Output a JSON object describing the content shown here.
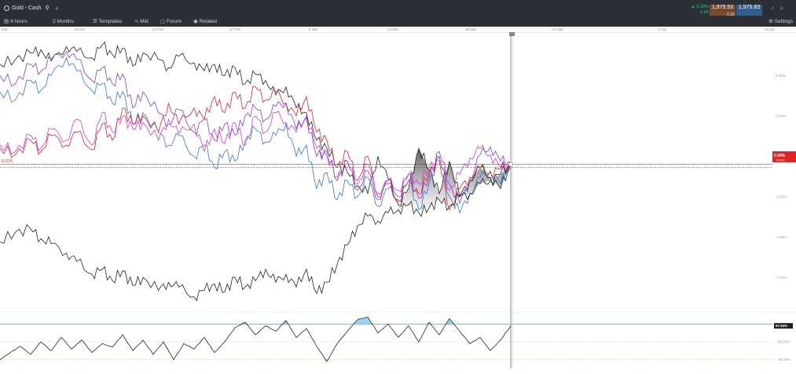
{
  "header": {
    "symbol": "Gold - Cash",
    "plus": "+",
    "change_pct": "▲ 0.28%",
    "change_abs": "5.83",
    "bid": "1,975.53",
    "ask": "1,975.83",
    "spread": "0.30",
    "window_controls": "↗ ✕"
  },
  "toolbar": {
    "interval": "4 hours",
    "range": "2 Months",
    "templates": "Templates",
    "mid": "Mid",
    "forum": "Forum",
    "related": "Related",
    "settings": "Settings"
  },
  "dates": [
    "Feb",
    "13 Feb",
    "20 Feb",
    "27 Feb",
    "6 Mar",
    "13 Mar",
    "20 Mar",
    "27 Mar",
    "3 Apr",
    "10 Apr"
  ],
  "colors": {
    "black": "#222222",
    "blue": "#3a73d4",
    "red": "#e02424",
    "magenta": "#d63bd3",
    "purple": "#7b3fd9",
    "rsi_band": "#3fb8d8",
    "rsi_low": "#f0a14a"
  },
  "chart_data": {
    "type": "line",
    "x_range": [
      0,
      100
    ],
    "main": {
      "y_ticks": [
        "5.50%",
        "3.00%",
        "0.50%",
        "-2.00%",
        "-4.50%",
        "-7.00%"
      ],
      "current_label": "0.00%",
      "current_sub_label": "-0.40%",
      "left_label": "0.22%",
      "ylim": [
        -9.0,
        8.0
      ],
      "series": [
        {
          "color": "#222222",
          "x": [
            0,
            3,
            6,
            8,
            10,
            13,
            15,
            18,
            20,
            22,
            24,
            26,
            28,
            31,
            33,
            35,
            38,
            40,
            42,
            44,
            46,
            48,
            50,
            52,
            54,
            56,
            58,
            60,
            62,
            64,
            66,
            68,
            70,
            72,
            74,
            76,
            78,
            80,
            82,
            84,
            86,
            88,
            90,
            92,
            94,
            96,
            98,
            100
          ],
          "y": [
            6.2,
            6.5,
            6.9,
            7.1,
            6.4,
            7.3,
            7.0,
            6.6,
            7.4,
            6.8,
            7.2,
            6.1,
            6.9,
            6.5,
            6.0,
            6.7,
            6.3,
            5.8,
            6.2,
            5.5,
            6.0,
            5.0,
            5.6,
            5.2,
            4.3,
            4.8,
            3.5,
            3.2,
            1.5,
            1.0,
            0.0,
            -0.5,
            -1.3,
            -1.8,
            0.5,
            -0.9,
            -2.5,
            -1.5,
            1.0,
            -0.3,
            -1.8,
            0.2,
            -2.0,
            -1.0,
            -0.2,
            -0.8,
            -1.5,
            0.0
          ]
        },
        {
          "color": "#3a73d4",
          "x": [
            0,
            3,
            6,
            8,
            10,
            13,
            15,
            18,
            20,
            22,
            24,
            26,
            28,
            31,
            33,
            35,
            38,
            40,
            42,
            44,
            46,
            48,
            50,
            52,
            54,
            56,
            58,
            60,
            62,
            64,
            66,
            68,
            70,
            72,
            74,
            76,
            78,
            80,
            82,
            84,
            86,
            88,
            90,
            92,
            94,
            96,
            98,
            100
          ],
          "y": [
            4.5,
            4.0,
            5.2,
            4.6,
            5.5,
            6.6,
            5.8,
            4.6,
            5.0,
            3.8,
            4.5,
            2.5,
            3.2,
            2.0,
            1.2,
            1.8,
            0.5,
            1.2,
            -0.2,
            0.8,
            0.2,
            1.5,
            2.2,
            1.4,
            1.8,
            2.5,
            0.5,
            1.2,
            -1.5,
            -0.5,
            -2.2,
            -1.0,
            -2.0,
            -0.8,
            -2.6,
            -1.5,
            -2.2,
            -1.0,
            -2.8,
            -1.2,
            0.5,
            -2.0,
            -3.0,
            -1.8,
            -0.8,
            -0.4,
            -1.2,
            -0.2
          ]
        },
        {
          "color": "#e02424",
          "x": [
            0,
            3,
            6,
            8,
            10,
            13,
            15,
            18,
            20,
            22,
            24,
            26,
            28,
            31,
            33,
            35,
            38,
            40,
            42,
            44,
            46,
            48,
            50,
            52,
            54,
            56,
            58,
            60,
            62,
            64,
            66,
            68,
            70,
            72,
            74,
            76,
            78,
            80,
            82,
            84,
            86,
            88,
            90,
            92,
            94,
            96,
            98,
            100
          ],
          "y": [
            1.0,
            0.6,
            1.5,
            0.8,
            1.8,
            1.2,
            2.0,
            0.9,
            2.5,
            1.5,
            3.5,
            2.5,
            3.0,
            2.0,
            3.8,
            2.5,
            3.5,
            2.8,
            4.2,
            3.2,
            4.5,
            3.5,
            4.8,
            4.0,
            4.5,
            3.8,
            3.0,
            4.2,
            2.0,
            1.5,
            -0.2,
            0.8,
            -1.0,
            0.5,
            -2.0,
            -1.2,
            -2.3,
            -1.0,
            -1.8,
            -0.5,
            0.2,
            -2.8,
            -1.5,
            -0.8,
            -0.2,
            -0.5,
            -0.3,
            -0.1
          ]
        },
        {
          "color": "#d63bd3",
          "x": [
            0,
            3,
            6,
            8,
            10,
            13,
            15,
            18,
            20,
            22,
            24,
            26,
            28,
            31,
            33,
            35,
            38,
            40,
            42,
            44,
            46,
            48,
            50,
            52,
            54,
            56,
            58,
            60,
            62,
            64,
            66,
            68,
            70,
            72,
            74,
            76,
            78,
            80,
            82,
            84,
            86,
            88,
            90,
            92,
            94,
            96,
            98,
            100
          ],
          "y": [
            1.2,
            0.8,
            1.8,
            1.0,
            2.2,
            1.5,
            2.8,
            1.2,
            3.2,
            2.0,
            3.0,
            2.2,
            2.6,
            1.5,
            2.8,
            1.9,
            2.5,
            0.8,
            2.2,
            1.3,
            2.6,
            1.2,
            3.0,
            2.0,
            3.2,
            2.6,
            2.0,
            3.0,
            1.0,
            0.5,
            -0.8,
            0.2,
            -1.2,
            0.0,
            -1.8,
            -1.0,
            -1.6,
            -0.6,
            -1.2,
            -0.2,
            0.4,
            -1.6,
            -0.6,
            0.4,
            1.0,
            0.6,
            -0.2,
            0.0
          ]
        },
        {
          "color": "#7b3fd9",
          "x": [
            0,
            3,
            6,
            8,
            10,
            13,
            15,
            18,
            20,
            22,
            24,
            26,
            28,
            31,
            33,
            35,
            38,
            40,
            42,
            44,
            46,
            48,
            50,
            52,
            54,
            56,
            58,
            60,
            62,
            64,
            66,
            68,
            70,
            72,
            74,
            76,
            78,
            80,
            82,
            84,
            86,
            88,
            90,
            92,
            94,
            96,
            98,
            100
          ],
          "y": [
            5.5,
            5.0,
            6.2,
            5.8,
            6.5,
            7.0,
            6.5,
            5.2,
            6.0,
            5.0,
            5.6,
            3.5,
            4.5,
            3.2,
            2.5,
            3.4,
            2.0,
            2.8,
            1.5,
            2.5,
            1.8,
            3.0,
            3.5,
            2.8,
            3.6,
            3.8,
            2.2,
            2.9,
            0.5,
            0.8,
            -1.0,
            0.2,
            -1.6,
            -0.4,
            -2.2,
            -1.0,
            -2.0,
            -0.6,
            -2.1,
            -0.8,
            0.8,
            -1.2,
            -2.4,
            -1.0,
            0.6,
            1.1,
            0.2,
            0.1
          ]
        },
        {
          "color": "#222222",
          "x": [
            0,
            3,
            6,
            8,
            10,
            13,
            15,
            18,
            20,
            22,
            24,
            26,
            28,
            31,
            33,
            35,
            38,
            40,
            42,
            44,
            46,
            48,
            50,
            52,
            54,
            56,
            58,
            60,
            62,
            64,
            66,
            68,
            70,
            72,
            74,
            76,
            78,
            80,
            82,
            84,
            86,
            88,
            90,
            92,
            94,
            96,
            98,
            100
          ],
          "y": [
            -4.8,
            -4.2,
            -4.0,
            -4.6,
            -4.9,
            -5.5,
            -6.0,
            -6.8,
            -6.5,
            -7.2,
            -6.6,
            -7.5,
            -7.0,
            -7.8,
            -7.3,
            -7.6,
            -8.2,
            -7.8,
            -7.4,
            -7.9,
            -7.0,
            -7.6,
            -7.2,
            -6.5,
            -7.3,
            -6.8,
            -7.6,
            -6.5,
            -8.0,
            -7.3,
            -6.2,
            -5.0,
            -3.8,
            -3.2,
            -3.5,
            -3.0,
            -2.8,
            -2.5,
            -3.0,
            -2.7,
            -2.2,
            -2.6,
            -2.0,
            -1.8,
            -1.2,
            -1.0,
            -0.6,
            0.0
          ]
        }
      ]
    },
    "rsi": {
      "y_ticks": [
        "70.00%",
        "50.00%",
        "30.00%"
      ],
      "current_label": "67.64%",
      "ylim": [
        20,
        80
      ],
      "band_upper": 70,
      "band_lower": 30,
      "x": [
        0,
        2,
        4,
        6,
        8,
        10,
        12,
        14,
        16,
        18,
        20,
        22,
        24,
        26,
        28,
        30,
        32,
        34,
        36,
        38,
        40,
        42,
        44,
        46,
        48,
        50,
        52,
        54,
        56,
        58,
        60,
        62,
        64,
        66,
        68,
        70,
        72,
        74,
        76,
        78,
        80,
        82,
        84,
        86,
        88,
        90,
        92,
        94,
        96,
        98,
        100
      ],
      "y": [
        30,
        38,
        45,
        36,
        50,
        40,
        55,
        42,
        52,
        38,
        48,
        44,
        58,
        40,
        52,
        36,
        50,
        30,
        48,
        42,
        55,
        38,
        50,
        66,
        72,
        58,
        68,
        62,
        74,
        55,
        65,
        45,
        28,
        48,
        62,
        75,
        78,
        60,
        70,
        55,
        68,
        50,
        72,
        58,
        76,
        62,
        48,
        55,
        40,
        52,
        68
      ]
    }
  }
}
